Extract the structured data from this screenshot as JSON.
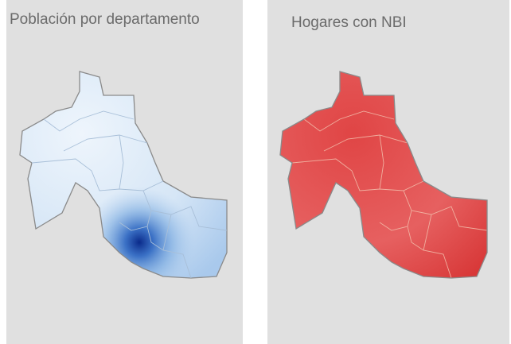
{
  "panels": [
    {
      "title": "Población por departamento"
    },
    {
      "title": "Hogares con NBI"
    }
  ]
}
